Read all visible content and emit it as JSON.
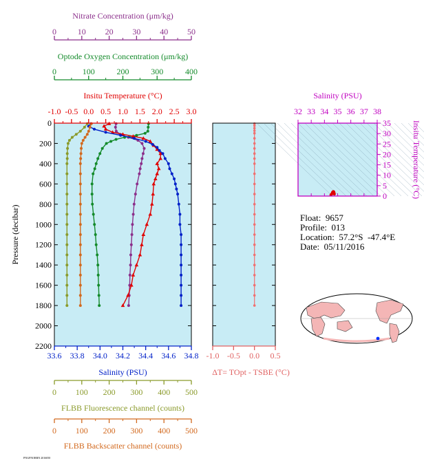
{
  "colors": {
    "nitrate": "#8b2f8b",
    "oxygen": "#138a2a",
    "temperature": "#e00000",
    "salinity": "#0020c8",
    "fluorescence": "#8a9a2a",
    "backscatter": "#d2691e",
    "delta_t": "#f07070",
    "ts_axis": "#c000c0",
    "panel_bg": "#c8ecf5"
  },
  "info": {
    "float_label": "Float:",
    "float_value": "9657",
    "profile_label": "Profile:",
    "profile_value": "013",
    "location_label": "Location:",
    "location_value": "57.2°S  -47.4°E",
    "date_label": "Date:",
    "date_value": "05/11/2016"
  },
  "footer_tag": "PNGFNORRN 2016050",
  "chart_data": [
    {
      "type": "line",
      "panel": "profiles",
      "ylabel": "Pressure (decibar)",
      "ylim": [
        2200,
        0
      ],
      "yticks": [
        0,
        200,
        400,
        600,
        800,
        1000,
        1200,
        1400,
        1600,
        1800,
        2000,
        2200
      ],
      "axes": [
        {
          "key": "nitrate",
          "label": "Nitrate Concentration (μm/kg)",
          "range": [
            0,
            50
          ],
          "ticks": [
            "0",
            "10",
            "20",
            "30",
            "40",
            "50"
          ]
        },
        {
          "key": "oxygen",
          "label": "Optode Oxygen Concentration (μm/kg)",
          "range": [
            0,
            400
          ],
          "ticks": [
            "0",
            "100",
            "200",
            "300",
            "400"
          ]
        },
        {
          "key": "temperature",
          "label": "Insitu Temperature (°C)",
          "range": [
            -1.0,
            3.0
          ],
          "ticks": [
            "-1.0",
            "-0.5",
            "0.0",
            "0.5",
            "1.0",
            "1.5",
            "2.0",
            "2.5",
            "3.0"
          ]
        },
        {
          "key": "salinity",
          "label": "Salinity (PSU)",
          "range": [
            33.6,
            34.8
          ],
          "ticks": [
            "33.6",
            "33.8",
            "34.0",
            "34.2",
            "34.4",
            "34.6",
            "34.8"
          ]
        },
        {
          "key": "fluorescence",
          "label": "FLBB Fluorescence channel (counts)",
          "range": [
            0,
            500
          ],
          "ticks": [
            "0",
            "100",
            "200",
            "300",
            "400",
            "500"
          ]
        },
        {
          "key": "backscatter",
          "label": "FLBB Backscatter channel (counts)",
          "range": [
            0,
            500
          ],
          "ticks": [
            "0",
            "100",
            "200",
            "300",
            "400",
            "500"
          ]
        }
      ],
      "series": [
        {
          "key": "nitrate",
          "marker": "circle",
          "pressure": [
            5,
            40,
            80,
            110,
            140,
            170,
            200,
            250,
            300,
            350,
            400,
            450,
            500,
            600,
            700,
            800,
            900,
            1000,
            1100,
            1200,
            1300,
            1400,
            1500,
            1600,
            1700,
            1800
          ],
          "values": [
            22.5,
            22.3,
            22.6,
            24.0,
            27.0,
            30.5,
            32.0,
            32.8,
            32.4,
            32.0,
            31.7,
            31.3,
            31.0,
            30.2,
            29.6,
            29.1,
            28.8,
            28.5,
            28.3,
            28.1,
            27.9,
            27.8,
            27.6,
            27.5,
            27.3,
            27.1
          ]
        },
        {
          "key": "oxygen",
          "marker": "circle",
          "pressure": [
            5,
            40,
            80,
            100,
            120,
            140,
            160,
            180,
            200,
            250,
            300,
            350,
            400,
            450,
            500,
            600,
            700,
            800,
            900,
            1000,
            1100,
            1200,
            1300,
            1400,
            1500,
            1600,
            1700,
            1800
          ],
          "values": [
            275,
            274,
            273,
            265,
            240,
            205,
            180,
            165,
            152,
            140,
            133,
            127,
            122,
            118,
            113,
            110,
            110,
            111,
            114,
            117,
            120,
            122,
            125,
            127,
            128,
            129,
            130,
            131
          ]
        },
        {
          "key": "temperature",
          "marker": "triangle",
          "pressure": [
            5,
            30,
            60,
            90,
            110,
            130,
            150,
            180,
            220,
            260,
            300,
            350,
            400,
            450,
            500,
            550,
            600,
            700,
            800,
            900,
            1000,
            1100,
            1200,
            1300,
            1400,
            1500,
            1600,
            1700,
            1800
          ],
          "values": [
            0.6,
            0.45,
            0.5,
            0.7,
            1.0,
            1.3,
            1.6,
            1.8,
            1.9,
            2.0,
            2.1,
            2.1,
            2.0,
            2.05,
            2.0,
            1.95,
            1.9,
            1.88,
            1.85,
            1.8,
            1.7,
            1.6,
            1.55,
            1.5,
            1.4,
            1.3,
            1.25,
            1.15,
            1.0
          ]
        },
        {
          "key": "salinity",
          "marker": "circle",
          "pressure": [
            5,
            30,
            60,
            90,
            120,
            150,
            180,
            210,
            240,
            270,
            300,
            350,
            400,
            450,
            500,
            550,
            600,
            650,
            700,
            800,
            900,
            1000,
            1100,
            1200,
            1300,
            1400,
            1500,
            1600,
            1700,
            1800
          ],
          "values": [
            33.92,
            33.9,
            33.95,
            34.05,
            34.18,
            34.3,
            34.4,
            34.46,
            34.5,
            34.52,
            34.55,
            34.57,
            34.6,
            34.61,
            34.63,
            34.65,
            34.66,
            34.67,
            34.68,
            34.69,
            34.7,
            34.7,
            34.71,
            34.71,
            34.71,
            34.71,
            34.71,
            34.71,
            34.71,
            34.71
          ]
        },
        {
          "key": "fluorescence",
          "marker": "circle",
          "pressure": [
            5,
            40,
            80,
            110,
            140,
            170,
            200,
            250,
            300,
            350,
            400,
            500,
            600,
            700,
            800,
            900,
            1000,
            1100,
            1200,
            1300,
            1400,
            1500,
            1600,
            1700,
            1800
          ],
          "values": [
            120,
            110,
            95,
            80,
            65,
            55,
            50,
            48,
            47,
            47,
            46,
            46,
            46,
            46,
            46,
            46,
            46,
            46,
            46,
            46,
            46,
            46,
            46,
            46,
            46
          ]
        },
        {
          "key": "backscatter",
          "marker": "circle",
          "pressure": [
            5,
            40,
            80,
            110,
            140,
            170,
            200,
            250,
            300,
            350,
            400,
            500,
            600,
            700,
            800,
            900,
            1000,
            1100,
            1200,
            1300,
            1400,
            1500,
            1600,
            1700,
            1800
          ],
          "values": [
            135,
            130,
            125,
            120,
            112,
            105,
            100,
            98,
            97,
            96,
            95,
            95,
            95,
            95,
            95,
            95,
            95,
            95,
            95,
            95,
            95,
            95,
            95,
            95,
            95
          ]
        }
      ]
    },
    {
      "type": "line",
      "panel": "delta_t",
      "xlabel": "ΔT= TOpt - TSBE (°C)",
      "xlim": [
        -1.0,
        0.5
      ],
      "xticks": [
        "-1.0",
        "-0.5",
        "0.0",
        "0.5"
      ],
      "ylim": [
        2200,
        0
      ],
      "series": [
        {
          "key": "delta_t",
          "marker": "circle",
          "pressure": [
            5,
            25,
            50,
            75,
            100,
            150,
            200,
            250,
            300,
            350,
            400,
            500,
            600,
            700,
            800,
            900,
            1000,
            1100,
            1200,
            1300,
            1400,
            1500,
            1600,
            1700,
            1800
          ],
          "values": [
            0.0,
            0.0,
            0.0,
            0.0,
            0.0,
            0.0,
            0.0,
            0.0,
            0.0,
            0.0,
            0.0,
            0.0,
            0.0,
            0.0,
            0.0,
            0.0,
            0.0,
            0.0,
            0.0,
            0.0,
            0.0,
            0.0,
            0.0,
            0.0,
            0.0
          ]
        }
      ]
    },
    {
      "type": "scatter",
      "panel": "ts_diagram",
      "xlabel": "Salinity (PSU)",
      "ylabel": "Insitu Temperature (°C)",
      "xlim": [
        32,
        38
      ],
      "ylim": [
        0,
        35
      ],
      "xticks": [
        "32",
        "33",
        "34",
        "35",
        "36",
        "37",
        "38"
      ],
      "yticks": [
        "0",
        "5",
        "10",
        "15",
        "20",
        "25",
        "30",
        "35"
      ],
      "series": [
        {
          "key": "ts_points",
          "salinity": [
            34.5,
            34.55,
            34.6,
            34.62,
            34.65,
            34.68,
            34.7,
            34.71,
            34.72,
            34.73,
            34.75
          ],
          "temperature": [
            0.6,
            1.0,
            1.4,
            1.8,
            2.0,
            2.1,
            2.0,
            1.9,
            1.6,
            1.2,
            1.0
          ]
        }
      ]
    }
  ]
}
